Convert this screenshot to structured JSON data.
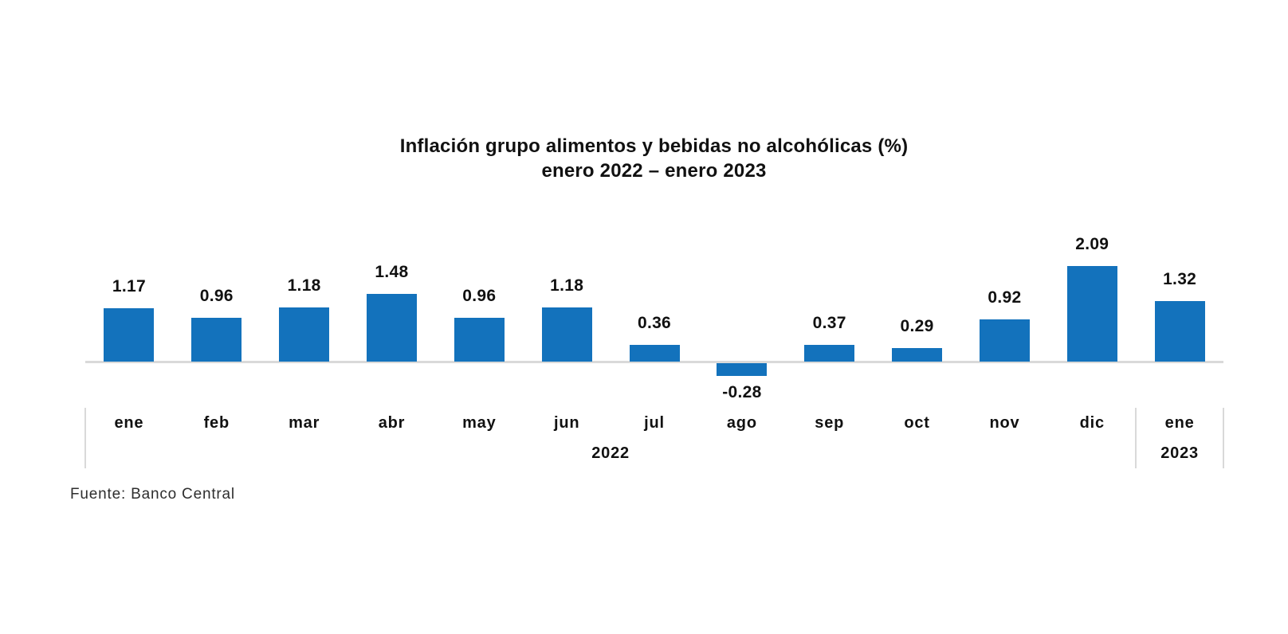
{
  "chart_data": {
    "type": "bar",
    "title": "Inflación grupo alimentos y bebidas no alcohólicas (%)",
    "subtitle": "enero 2022 – enero 2023",
    "categories": [
      "ene",
      "feb",
      "mar",
      "abr",
      "may",
      "jun",
      "jul",
      "ago",
      "sep",
      "oct",
      "nov",
      "dic",
      "ene"
    ],
    "values": [
      1.17,
      0.96,
      1.18,
      1.48,
      0.96,
      1.18,
      0.36,
      -0.28,
      0.37,
      0.29,
      0.92,
      2.09,
      1.32
    ],
    "data_labels": [
      "1.17",
      "0.96",
      "1.18",
      "1.48",
      "0.96",
      "1.18",
      "0.36",
      "-0.28",
      "0.37",
      "0.29",
      "0.92",
      "2.09",
      "1.32"
    ],
    "year_groups": [
      {
        "label": "2022",
        "start_index": 0,
        "end_index": 11
      },
      {
        "label": "2023",
        "start_index": 12,
        "end_index": 12
      }
    ],
    "bar_color": "#1372BC",
    "axis_line_color": "#D9D9D9",
    "text_color": "#111111",
    "y_axis_visible": false,
    "grid": false,
    "legend": null,
    "ylim": [
      -0.5,
      2.5
    ]
  },
  "source": {
    "text": "Fuente: Banco Central"
  }
}
